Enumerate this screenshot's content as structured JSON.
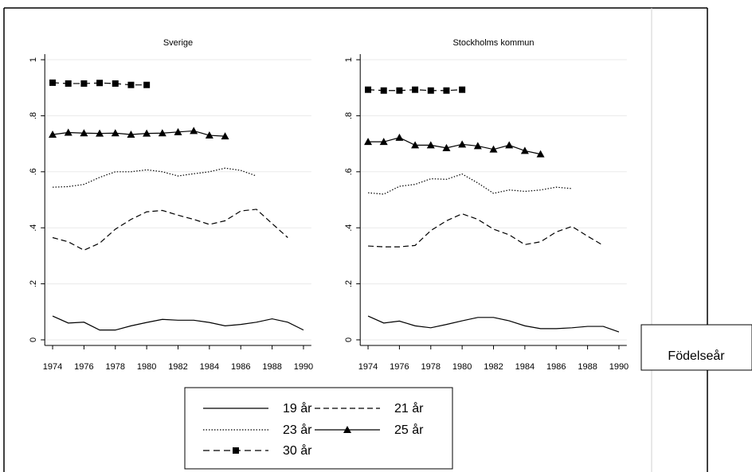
{
  "chart_data": [
    {
      "type": "line",
      "title": "Sverige",
      "x": [
        1974,
        1975,
        1976,
        1977,
        1978,
        1979,
        1980,
        1981,
        1982,
        1983,
        1984,
        1985,
        1986,
        1987,
        1988,
        1989,
        1990
      ],
      "xlim": [
        1973.5,
        1990.5
      ],
      "xticks": [
        1974,
        1976,
        1978,
        1980,
        1982,
        1984,
        1986,
        1988,
        1990
      ],
      "ylim": [
        -0.02,
        1.02
      ],
      "yticks": [
        {
          "value": 0,
          "label": "0"
        },
        {
          "value": 0.2,
          "label": ".2"
        },
        {
          "value": 0.4,
          "label": ".4"
        },
        {
          "value": 0.6,
          "label": ".6"
        },
        {
          "value": 0.8,
          "label": ".8"
        },
        {
          "value": 1,
          "label": "1"
        }
      ],
      "grid": true,
      "series": [
        {
          "name": "19 år",
          "color": "#000000",
          "dash": "solid",
          "marker": "none",
          "values": [
            0.085,
            0.06,
            0.063,
            0.035,
            0.035,
            0.05,
            0.062,
            0.073,
            0.07,
            0.07,
            0.062,
            0.05,
            0.055,
            0.063,
            0.075,
            0.063,
            0.035
          ]
        },
        {
          "name": "21 år",
          "color": "#000000",
          "dash": "dashed",
          "marker": "none",
          "values": [
            0.365,
            0.35,
            0.32,
            0.345,
            0.395,
            0.43,
            0.457,
            0.462,
            0.445,
            0.43,
            0.412,
            0.425,
            0.46,
            0.466,
            0.415,
            0.365,
            null
          ]
        },
        {
          "name": "23 år",
          "color": "#000000",
          "dash": "dotted",
          "marker": "none",
          "values": [
            0.545,
            0.547,
            0.555,
            0.58,
            0.6,
            0.6,
            0.607,
            0.6,
            0.585,
            0.593,
            0.6,
            0.613,
            0.605,
            0.585,
            null,
            null,
            null
          ]
        },
        {
          "name": "25 år",
          "color": "#000000",
          "dash": "solid",
          "marker": "triangle",
          "values": [
            0.733,
            0.74,
            0.738,
            0.737,
            0.738,
            0.733,
            0.737,
            0.738,
            0.742,
            0.746,
            0.73,
            0.727,
            null,
            null,
            null,
            null,
            null
          ]
        },
        {
          "name": "30 år",
          "color": "#000000",
          "dash": "longdash",
          "marker": "square",
          "values": [
            0.918,
            0.915,
            0.915,
            0.917,
            0.915,
            0.91,
            0.91,
            null,
            null,
            null,
            null,
            null,
            null,
            null,
            null,
            null,
            null
          ]
        }
      ]
    },
    {
      "type": "line",
      "title": "Stockholms kommun",
      "xlabel": "Födelseår",
      "x": [
        1974,
        1975,
        1976,
        1977,
        1978,
        1979,
        1980,
        1981,
        1982,
        1983,
        1984,
        1985,
        1986,
        1987,
        1988,
        1989,
        1990
      ],
      "xlim": [
        1973.5,
        1990.5
      ],
      "xticks": [
        1974,
        1976,
        1978,
        1980,
        1982,
        1984,
        1986,
        1988,
        1990
      ],
      "ylim": [
        -0.02,
        1.02
      ],
      "yticks": [
        {
          "value": 0,
          "label": "0"
        },
        {
          "value": 0.2,
          "label": ".2"
        },
        {
          "value": 0.4,
          "label": ".4"
        },
        {
          "value": 0.6,
          "label": ".6"
        },
        {
          "value": 0.8,
          "label": ".8"
        },
        {
          "value": 1,
          "label": "1"
        }
      ],
      "grid": true,
      "series": [
        {
          "color": "#000000",
          "dash": "solid",
          "marker": "none",
          "values": [
            0.085,
            0.06,
            0.067,
            0.05,
            0.043,
            0.055,
            0.068,
            0.08,
            0.08,
            0.068,
            0.05,
            0.04,
            0.04,
            0.043,
            0.048,
            0.048,
            0.028
          ]
        },
        {
          "color": "#000000",
          "dash": "dashed",
          "marker": "none",
          "values": [
            0.335,
            0.332,
            0.332,
            0.337,
            0.39,
            0.425,
            0.45,
            0.43,
            0.395,
            0.375,
            0.34,
            0.35,
            0.385,
            0.405,
            0.37,
            0.337,
            null
          ]
        },
        {
          "color": "#000000",
          "dash": "dotted",
          "marker": "none",
          "values": [
            0.525,
            0.52,
            0.548,
            0.555,
            0.575,
            0.573,
            0.592,
            0.56,
            0.523,
            0.535,
            0.53,
            0.535,
            0.545,
            0.54,
            null,
            null,
            null
          ]
        },
        {
          "color": "#000000",
          "dash": "solid",
          "marker": "triangle",
          "values": [
            0.707,
            0.707,
            0.722,
            0.695,
            0.695,
            0.685,
            0.698,
            0.692,
            0.68,
            0.695,
            0.675,
            0.663,
            null,
            null,
            null,
            null,
            null
          ]
        },
        {
          "color": "#000000",
          "dash": "longdash",
          "marker": "square",
          "values": [
            0.893,
            0.89,
            0.89,
            0.893,
            0.89,
            0.89,
            0.893,
            null,
            null,
            null,
            null,
            null,
            null,
            null,
            null,
            null,
            null
          ]
        }
      ]
    }
  ]
}
